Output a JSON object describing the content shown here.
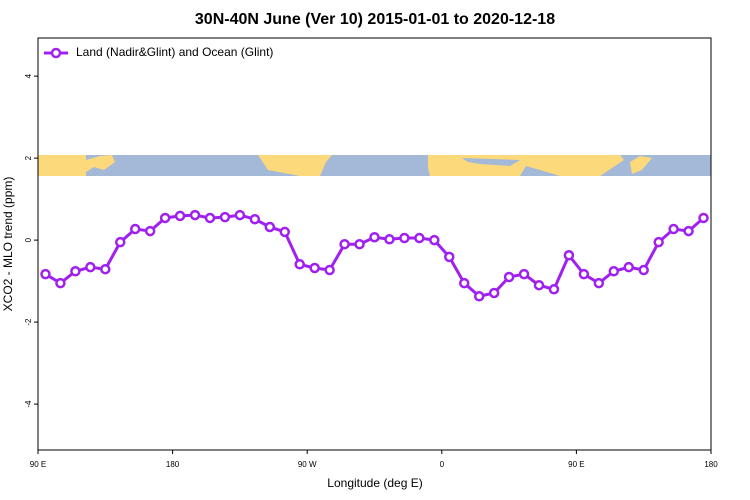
{
  "chart_data": {
    "type": "line",
    "title": "30N-40N June (Ver 10)   2015-01-01 to 2020-12-18",
    "x_label": "Longitude (deg E)",
    "y_label": "XCO2 - MLO trend (ppm)",
    "x": [
      95,
      105,
      115,
      125,
      135,
      145,
      155,
      165,
      175,
      185,
      195,
      205,
      215,
      225,
      235,
      245,
      255,
      265,
      275,
      285,
      295,
      305,
      315,
      325,
      335,
      345,
      355,
      365,
      375,
      385,
      395,
      405,
      415,
      425,
      435,
      445,
      455,
      465,
      475,
      485,
      495,
      505,
      515,
      525,
      535
    ],
    "series": [
      {
        "name": "Land (Nadir&Glint) and Ocean (Glint)",
        "color": "#a020f0",
        "values": [
          -0.83,
          -1.05,
          -0.76,
          -0.66,
          -0.71,
          -0.05,
          0.27,
          0.22,
          0.54,
          0.59,
          0.61,
          0.54,
          0.56,
          0.61,
          0.51,
          0.32,
          0.2,
          -0.59,
          -0.68,
          -0.73,
          -0.1,
          -0.1,
          0.07,
          0.02,
          0.05,
          0.05,
          0,
          -0.41,
          -1.05,
          -1.37,
          -1.29,
          -0.9,
          -0.83,
          -1.1,
          -1.2,
          -0.37,
          -0.83,
          -1.05,
          -0.76,
          -0.66,
          -0.73,
          -0.05,
          0.27,
          0.22,
          0.54
        ]
      }
    ],
    "xlim": [
      90,
      540
    ],
    "xticks": [
      {
        "value": 90,
        "label": "90 E"
      },
      {
        "value": 180,
        "label": "180"
      },
      {
        "value": 270,
        "label": "90 W"
      },
      {
        "value": 360,
        "label": "0"
      },
      {
        "value": 450,
        "label": "90 E"
      },
      {
        "value": 540,
        "label": "180"
      }
    ],
    "ylim": [
      -5.12,
      4.93
    ],
    "yticks": [
      -4,
      -2,
      0,
      2,
      4
    ],
    "legend": "top-left"
  }
}
